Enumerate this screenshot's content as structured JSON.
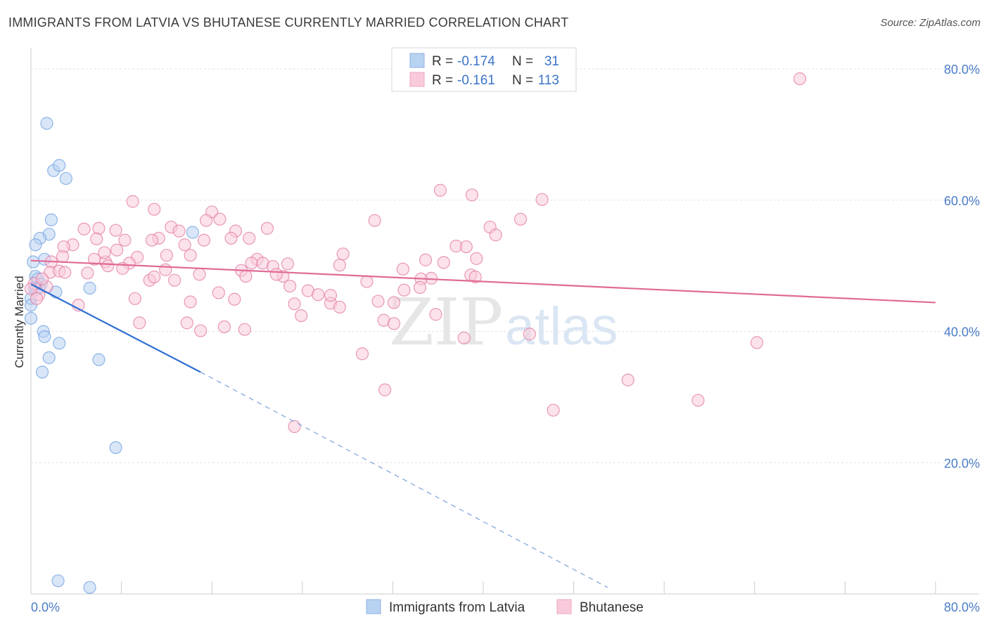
{
  "title": "IMMIGRANTS FROM LATVIA VS BHUTANESE CURRENTLY MARRIED CORRELATION CHART",
  "source": "Source: ZipAtlas.com",
  "watermark": {
    "zip": "ZIP",
    "atlas": "atlas"
  },
  "legend": {
    "r_label": "R =",
    "n_label": "N =",
    "rows": [
      {
        "r": "-0.174",
        "n": "31",
        "color": "#a8c8f0"
      },
      {
        "r": "-0.161",
        "n": "113",
        "color": "#f7bcd0"
      }
    ]
  },
  "chart_data": {
    "type": "scatter",
    "title": "IMMIGRANTS FROM LATVIA VS BHUTANESE CURRENTLY MARRIED CORRELATION CHART",
    "xlabel": "",
    "ylabel": "Currently Married",
    "xlim": [
      0,
      80
    ],
    "ylim": [
      0,
      83
    ],
    "x_tick_labels": [
      "0.0%",
      "80.0%"
    ],
    "y_ticks": [
      20,
      40,
      60,
      80
    ],
    "y_tick_labels": [
      "20.0%",
      "40.0%",
      "60.0%",
      "80.0%"
    ],
    "grid": true,
    "legend_placement": "bottom",
    "series": [
      {
        "name": "Immigrants from Latvia",
        "color": "#6fa0e0",
        "fill": "#b8d2f2",
        "trend": {
          "x": [
            0,
            15
          ],
          "y": [
            47.2,
            33.8
          ],
          "dashed_to": [
            51,
            1.0
          ]
        },
        "points": [
          [
            1.4,
            71.7
          ],
          [
            2.0,
            64.5
          ],
          [
            2.5,
            65.3
          ],
          [
            3.1,
            63.3
          ],
          [
            1.8,
            57.0
          ],
          [
            1.6,
            54.8
          ],
          [
            0.8,
            54.2
          ],
          [
            0.4,
            53.2
          ],
          [
            1.2,
            51.0
          ],
          [
            0.2,
            50.6
          ],
          [
            0.4,
            48.4
          ],
          [
            0.6,
            48.0
          ],
          [
            0.9,
            47.2
          ],
          [
            0.3,
            46.6
          ],
          [
            0.7,
            46.6
          ],
          [
            0.5,
            46.4
          ],
          [
            2.2,
            46.0
          ],
          [
            5.2,
            46.6
          ],
          [
            14.3,
            55.1
          ],
          [
            0.0,
            45.0
          ],
          [
            0.0,
            44.0
          ],
          [
            1.1,
            40.0
          ],
          [
            1.2,
            39.2
          ],
          [
            2.5,
            38.2
          ],
          [
            1.6,
            36.0
          ],
          [
            6.0,
            35.7
          ],
          [
            1.0,
            33.8
          ],
          [
            7.5,
            22.3
          ],
          [
            2.4,
            2.0
          ],
          [
            5.2,
            1.0
          ],
          [
            0.0,
            42.0
          ]
        ]
      },
      {
        "name": "Bhutanese",
        "color": "#e27aa0",
        "fill": "#f9cadb",
        "trend": {
          "x": [
            0,
            80
          ],
          "y": [
            50.8,
            44.4
          ]
        },
        "points": [
          [
            68.0,
            78.5
          ],
          [
            9.0,
            59.8
          ],
          [
            36.2,
            61.5
          ],
          [
            39.0,
            60.8
          ],
          [
            45.2,
            60.1
          ],
          [
            10.9,
            58.6
          ],
          [
            16.0,
            58.2
          ],
          [
            15.5,
            56.9
          ],
          [
            16.7,
            57.1
          ],
          [
            30.4,
            56.9
          ],
          [
            43.3,
            57.1
          ],
          [
            12.4,
            55.9
          ],
          [
            6.0,
            55.7
          ],
          [
            4.7,
            55.6
          ],
          [
            13.1,
            55.3
          ],
          [
            7.5,
            55.4
          ],
          [
            18.1,
            55.3
          ],
          [
            20.9,
            55.7
          ],
          [
            40.6,
            55.9
          ],
          [
            5.8,
            54.1
          ],
          [
            8.3,
            53.9
          ],
          [
            11.3,
            54.2
          ],
          [
            10.7,
            53.9
          ],
          [
            15.3,
            53.9
          ],
          [
            17.7,
            54.2
          ],
          [
            19.3,
            54.2
          ],
          [
            3.7,
            53.2
          ],
          [
            2.9,
            52.9
          ],
          [
            13.6,
            53.2
          ],
          [
            7.6,
            52.4
          ],
          [
            37.6,
            53.0
          ],
          [
            38.5,
            52.9
          ],
          [
            41.1,
            54.7
          ],
          [
            12.0,
            51.6
          ],
          [
            14.1,
            51.6
          ],
          [
            27.6,
            51.8
          ],
          [
            2.8,
            51.4
          ],
          [
            5.6,
            51.0
          ],
          [
            9.4,
            51.3
          ],
          [
            20.0,
            51.0
          ],
          [
            34.9,
            50.9
          ],
          [
            39.4,
            51.1
          ],
          [
            1.8,
            50.6
          ],
          [
            6.6,
            50.6
          ],
          [
            8.7,
            50.4
          ],
          [
            19.5,
            50.4
          ],
          [
            20.5,
            50.4
          ],
          [
            22.7,
            50.3
          ],
          [
            36.5,
            50.5
          ],
          [
            6.8,
            50.0
          ],
          [
            8.1,
            49.6
          ],
          [
            11.9,
            49.4
          ],
          [
            18.6,
            49.3
          ],
          [
            21.4,
            49.9
          ],
          [
            27.3,
            50.1
          ],
          [
            32.9,
            49.5
          ],
          [
            1.7,
            49.0
          ],
          [
            2.5,
            49.2
          ],
          [
            5.0,
            48.9
          ],
          [
            14.9,
            48.7
          ],
          [
            19.0,
            48.4
          ],
          [
            22.3,
            48.4
          ],
          [
            35.4,
            48.1
          ],
          [
            38.9,
            48.6
          ],
          [
            10.5,
            47.8
          ],
          [
            12.7,
            47.8
          ],
          [
            10.9,
            48.3
          ],
          [
            29.7,
            47.6
          ],
          [
            34.5,
            48.0
          ],
          [
            39.3,
            48.3
          ],
          [
            0.3,
            47.3
          ],
          [
            1.4,
            46.8
          ],
          [
            22.9,
            46.9
          ],
          [
            34.4,
            46.7
          ],
          [
            0.7,
            45.6
          ],
          [
            16.6,
            45.9
          ],
          [
            24.5,
            46.2
          ],
          [
            25.4,
            45.6
          ],
          [
            9.2,
            45.0
          ],
          [
            18.0,
            44.9
          ],
          [
            14.1,
            44.5
          ],
          [
            23.3,
            44.2
          ],
          [
            26.5,
            44.3
          ],
          [
            30.7,
            44.6
          ],
          [
            32.1,
            44.4
          ],
          [
            4.2,
            44.0
          ],
          [
            27.3,
            43.7
          ],
          [
            23.9,
            42.4
          ],
          [
            35.8,
            42.6
          ],
          [
            31.2,
            41.7
          ],
          [
            9.6,
            41.3
          ],
          [
            13.8,
            41.3
          ],
          [
            32.1,
            41.2
          ],
          [
            17.1,
            40.7
          ],
          [
            18.9,
            40.3
          ],
          [
            15.0,
            40.1
          ],
          [
            44.1,
            39.6
          ],
          [
            38.3,
            39.0
          ],
          [
            64.2,
            38.3
          ],
          [
            29.3,
            36.6
          ],
          [
            52.8,
            32.6
          ],
          [
            31.3,
            31.1
          ],
          [
            59.0,
            29.5
          ],
          [
            46.2,
            28.0
          ],
          [
            23.3,
            25.5
          ],
          [
            0.0,
            46.5
          ],
          [
            0.5,
            45.0
          ],
          [
            1.0,
            48.0
          ],
          [
            3.0,
            49.0
          ],
          [
            6.5,
            52.0
          ],
          [
            21.7,
            48.7
          ],
          [
            26.5,
            45.5
          ],
          [
            33.0,
            46.3
          ]
        ]
      }
    ]
  },
  "bottom_legend": [
    {
      "label": "Immigrants from Latvia",
      "color": "#b8d2f2"
    },
    {
      "label": "Bhutanese",
      "color": "#f9cadb"
    }
  ]
}
